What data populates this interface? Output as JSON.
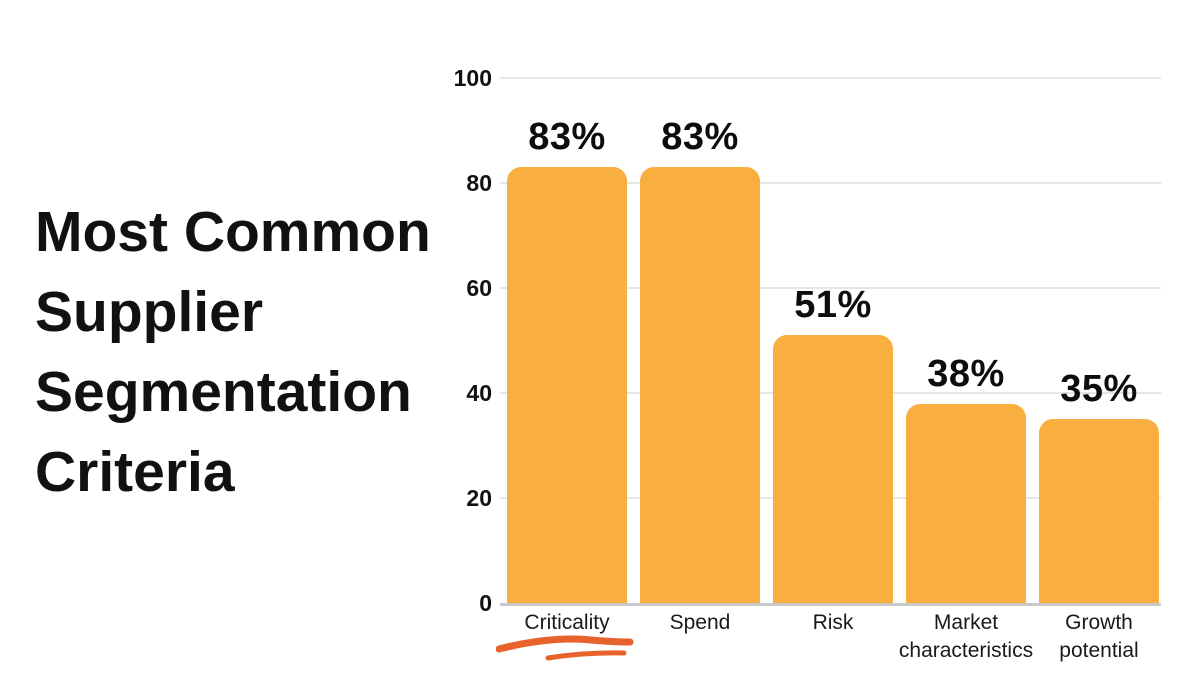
{
  "title": {
    "full": "Most Common Supplier Segmentation Criteria",
    "lines": [
      "Most Common",
      "Supplier",
      "Segmentation",
      "Criteria"
    ],
    "color": "#111111"
  },
  "chart_data": {
    "type": "bar",
    "title": "Most Common Supplier Segmentation Criteria",
    "categories": [
      "Criticality",
      "Spend",
      "Risk",
      "Market characteristics",
      "Growth potential"
    ],
    "category_label_lines": [
      [
        "Criticality"
      ],
      [
        "Spend"
      ],
      [
        "Risk"
      ],
      [
        "Market",
        "characteristics"
      ],
      [
        "Growth",
        "potential"
      ]
    ],
    "values": [
      83,
      83,
      51,
      38,
      35
    ],
    "data_labels": [
      "83%",
      "83%",
      "51%",
      "38%",
      "35%"
    ],
    "xlabel": "",
    "ylabel": "",
    "ylim": [
      0,
      100
    ],
    "yticks": [
      "0",
      "20",
      "40",
      "60",
      "80",
      "100"
    ],
    "ytick_values": [
      0,
      20,
      40,
      60,
      80,
      100
    ],
    "grid": true,
    "legend": false,
    "bar_color": "#F9AF40",
    "gridline_color": "#E6E6E6",
    "baseline_color": "#C9C9C9",
    "text_color": "#111111",
    "annotation": {
      "type": "hand-drawn-underline",
      "target_category": "Criticality",
      "color": "#E8622C"
    }
  }
}
